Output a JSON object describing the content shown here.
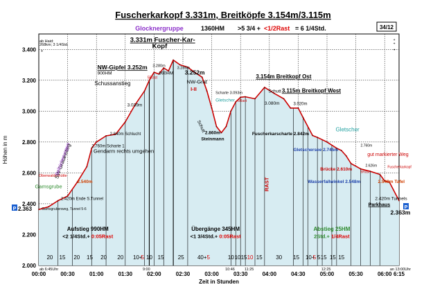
{
  "chart_data": {
    "type": "line",
    "title": "Fuscherkarkopf 3.331m, Breitköpfe 3.154m/3.115m",
    "subtitle": {
      "group": "Glocknergruppe",
      "hm": "1360HM",
      "time_a": ">5 3/4 +",
      "rast": "<1/2Rast",
      "time_b": "= 6 1/4Std."
    },
    "page_badge": "34/12",
    "xlabel": "Zeit in Stunden",
    "ylabel": "Höhen in m",
    "ylim": [
      2000,
      3500
    ],
    "xlim": [
      0,
      375
    ],
    "y_ticks": [
      "2.000",
      "2.200",
      "2.400",
      "2.600",
      "2.800",
      "3.000",
      "3.200",
      "3.400"
    ],
    "x_ticks": [
      "00:00",
      "00:30",
      "01:00",
      "01:30",
      "02:00",
      "02:30",
      "03:00",
      "03:30",
      "04:00",
      "04:30",
      "05:00",
      "05:30",
      "06:00",
      "6:15"
    ],
    "series": [
      {
        "name": "Route",
        "x": [
          0,
          10,
          20,
          30,
          40,
          50,
          55,
          60,
          70,
          80,
          90,
          100,
          110,
          115,
          120,
          125,
          130,
          135,
          140,
          147,
          155,
          162,
          170,
          175,
          180,
          185,
          190,
          195,
          200,
          205,
          210,
          215,
          225,
          235,
          245,
          255,
          262,
          270,
          275,
          285,
          290,
          300,
          310,
          315,
          320,
          325,
          335,
          345,
          355,
          360,
          365,
          375
        ],
        "y": [
          2363,
          2380,
          2420,
          2450,
          2540,
          2640,
          2760,
          2800,
          2840,
          2850,
          2930,
          3039,
          3130,
          3200,
          3252,
          3240,
          3280,
          3260,
          3331,
          3300,
          3285,
          3252,
          3220,
          3130,
          3020,
          2900,
          2860,
          2900,
          3000,
          3060,
          3090,
          3093,
          3080,
          3154,
          3115,
          3080,
          3020,
          3020,
          2960,
          2842,
          2830,
          2800,
          2760,
          2745,
          2710,
          2660,
          2626,
          2610,
          2590,
          2548,
          2540,
          2420
        ]
      }
    ],
    "footer": {
      "start_note": "ab 6:45Uhr",
      "end_note": "an 13:00Uhr",
      "marks": [
        {
          "label": "9:00",
          "x": 112
        },
        {
          "label": "10:46",
          "x": 199
        },
        {
          "label": "11:25",
          "x": 219
        },
        {
          "label": "12:25",
          "x": 299
        }
      ]
    },
    "segments": [
      {
        "t": "20",
        "x": 11.5,
        "rast": false
      },
      {
        "t": "15",
        "x": 24.5,
        "rast": false
      },
      {
        "t": "20",
        "x": 39.5,
        "rast": false
      },
      {
        "t": "15",
        "x": 53,
        "rast": false
      },
      {
        "t": "20",
        "x": 67.5,
        "rast": false
      },
      {
        "t": "20",
        "x": 85,
        "rast": false
      },
      {
        "t": "10+",
        "x": 103,
        "rast": false
      },
      {
        "t": "5",
        "x": 108,
        "rast": true
      },
      {
        "t": "10",
        "x": 115,
        "rast": false
      },
      {
        "t": "15",
        "x": 127,
        "rast": false
      },
      {
        "t": "25",
        "x": 148,
        "rast": false
      },
      {
        "t": "40+",
        "x": 170,
        "rast": false
      },
      {
        "t": "5",
        "x": 176.5,
        "rast": true
      },
      {
        "t": "10",
        "x": 200,
        "rast": false
      },
      {
        "t": "10",
        "x": 207,
        "rast": false
      },
      {
        "t": "15",
        "x": 213.5,
        "rast": false
      },
      {
        "t": "10",
        "x": 220,
        "rast": true
      },
      {
        "t": "15",
        "x": 229.5,
        "rast": false
      },
      {
        "t": "30",
        "x": 250,
        "rast": false
      },
      {
        "t": "15",
        "x": 268,
        "rast": false
      },
      {
        "t": "10+",
        "x": 282.5,
        "rast": false
      },
      {
        "t": "5",
        "x": 287,
        "rast": true
      },
      {
        "t": "5",
        "x": 291.5,
        "rast": false
      },
      {
        "t": "15",
        "x": 296.5,
        "rast": false
      },
      {
        "t": "15",
        "x": 306,
        "rast": false
      },
      {
        "t": "15",
        "x": 315,
        "rast": false
      }
    ],
    "sections": [
      {
        "name": "Aufstieg 990HM",
        "time": "<2 1/4Std.+",
        "rast": "0:05Rast",
        "x": 51
      },
      {
        "name": "Übergänge 345HM",
        "time": "<1 3/4Std.+",
        "rast": "0:05Rast",
        "x": 184
      },
      {
        "name": "Abstieg 25HM",
        "time": "2Std.+",
        "rast": "1/4Rast",
        "x": 305
      }
    ],
    "annotations": [
      {
        "text": "ab Haid:",
        "x": 0.7,
        "y": 3445,
        "size": 5.5,
        "color": "#000000"
      },
      {
        "text": "268km; 3 1/4Std.",
        "x": 0.7,
        "y": 3424,
        "size": 5.5,
        "color": "#000000"
      },
      {
        "text": "3.331m Fuscher-Kar-",
        "x": 95,
        "y": 3448,
        "size": 9.5,
        "color": "#000000",
        "bold": true,
        "underline": true
      },
      {
        "text": "Kopf",
        "x": 118,
        "y": 3408,
        "size": 9.5,
        "color": "#000000",
        "bold": true
      },
      {
        "text": "NW-Gipfel 3.252m",
        "x": 61,
        "y": 3270,
        "size": 8.5,
        "color": "#000000",
        "bold": true,
        "underline": true
      },
      {
        "text": "900HM",
        "x": 61,
        "y": 3237,
        "size": 6.5,
        "color": "#000000"
      },
      {
        "text": "3.280m",
        "x": 118.5,
        "y": 3287,
        "size": 5.5,
        "color": "#000000"
      },
      {
        "text": "990HM",
        "x": 125,
        "y": 3237,
        "size": 6.5,
        "color": "#000000"
      },
      {
        "text": "3.285m",
        "x": 144,
        "y": 3273,
        "size": 5.5,
        "color": "#000000"
      },
      {
        "text": "3.252m",
        "x": 152,
        "y": 3238,
        "size": 8.5,
        "color": "#000000",
        "bold": true
      },
      {
        "text": "5Rast",
        "x": 113,
        "y": 3210,
        "size": 5.5,
        "color": "#cc0000"
      },
      {
        "text": "Schussanstieg",
        "x": 58,
        "y": 3168,
        "size": 8,
        "color": "#000000"
      },
      {
        "text": "NW-Grat",
        "x": 154,
        "y": 3178,
        "size": 7.5,
        "color": "#000000"
      },
      {
        "text": "I-II",
        "x": 158,
        "y": 3131,
        "size": 7.5,
        "color": "#cc0000",
        "bold": true
      },
      {
        "text": "3.039m",
        "x": 92,
        "y": 3030,
        "size": 6.5,
        "color": "#000000"
      },
      {
        "text": "2.840m  Schlucht",
        "x": 74,
        "y": 2845,
        "size": 6,
        "color": "#000000"
      },
      {
        "text": "2.760m Scharte 1",
        "x": 55,
        "y": 2765,
        "size": 6,
        "color": "#000000"
      },
      {
        "text": "Gendarm rechts umgehen",
        "x": 57,
        "y": 2730,
        "size": 7.5,
        "color": "#000000"
      },
      {
        "text": "2.420m Ende S.Tunnel",
        "x": 23,
        "y": 2425,
        "size": 6,
        "color": "#000000"
      },
      {
        "text": "Gamsgrubenweg, Tunnel 5-6",
        "x": 3,
        "y": 2359,
        "size": 5,
        "color": "#000000"
      },
      {
        "text": "Gamsgrube",
        "x": -4,
        "y": 2500,
        "size": 7.5,
        "color": "#2e8b2e"
      },
      {
        "text": "Oberwalderhütte",
        "x": 0,
        "y": 2575,
        "size": 5.5,
        "color": "#cc0000"
      },
      {
        "text": "2.540m",
        "x": 40,
        "y": 2535,
        "size": 6.5,
        "color": "#d04000",
        "bold": true
      },
      {
        "text": "Schutt",
        "x": 165,
        "y": 2935,
        "size": 6.5,
        "color": "#000000",
        "rotate": 65
      },
      {
        "text": "2.860m",
        "x": 173,
        "y": 2850,
        "size": 6.5,
        "color": "#000000",
        "bold": true
      },
      {
        "text": "Steinmann",
        "x": 169,
        "y": 2810,
        "size": 6.5,
        "color": "#000000",
        "bold": true
      },
      {
        "text": "Scharte 3.093m",
        "x": 184,
        "y": 3111,
        "size": 5.5,
        "color": "#000000"
      },
      {
        "text": "Gletscher",
        "x": 184,
        "y": 3063,
        "size": 6.5,
        "color": "#20a0a0"
      },
      {
        "text": "5Rast",
        "x": 207,
        "y": 3060,
        "size": 5,
        "color": "#cc0000"
      },
      {
        "text": "3.154m Breitkopf Ost",
        "x": 226,
        "y": 3213,
        "size": 8,
        "color": "#000000",
        "bold": true,
        "underline": true
      },
      {
        "text": "Schutt",
        "x": 239,
        "y": 3121,
        "size": 6.5,
        "color": "#000000"
      },
      {
        "text": "3.115m Breitkopf West",
        "x": 253,
        "y": 3121,
        "size": 8,
        "color": "#000000",
        "bold": true,
        "underline": true
      },
      {
        "text": "3.080m",
        "x": 235,
        "y": 3043,
        "size": 6.5,
        "color": "#000000"
      },
      {
        "text": "3.020m",
        "x": 265,
        "y": 3039,
        "size": 6,
        "color": "#000000"
      },
      {
        "text": "Fuscherkarscharte 2.842m",
        "x": 222,
        "y": 2844,
        "size": 6.5,
        "color": "#000000",
        "bold": true
      },
      {
        "text": "Gletscher",
        "x": 309,
        "y": 2870,
        "size": 8,
        "color": "#20a0a0"
      },
      {
        "text": "2.760m",
        "x": 335,
        "y": 2770,
        "size": 5,
        "color": "#000000"
      },
      {
        "text": "Gletschersee 2.745m",
        "x": 265,
        "y": 2740,
        "size": 6.5,
        "color": "#1a3ea8",
        "bold": true
      },
      {
        "text": "gut markierter Weg",
        "x": 342,
        "y": 2710,
        "size": 7,
        "color": "#cc0000"
      },
      {
        "text": "Brücke 2.610m",
        "x": 293,
        "y": 2615,
        "size": 6.5,
        "color": "#cc0000",
        "bold": true
      },
      {
        "text": "Fuscherkarkopf",
        "x": 363,
        "y": 2630,
        "size": 5,
        "color": "#cc0000"
      },
      {
        "text": "2.626m",
        "x": 340,
        "y": 2640,
        "size": 5,
        "color": "#000000"
      },
      {
        "text": "5Rast",
        "x": 335,
        "y": 2600,
        "size": 5,
        "color": "#cc0000"
      },
      {
        "text": "Wasserfallwinkel 2.548m",
        "x": 280,
        "y": 2535,
        "size": 6.5,
        "color": "#1a3ea8",
        "bold": true
      },
      {
        "text": "2.540m Tafel",
        "x": 353,
        "y": 2535,
        "size": 6.5,
        "color": "#d04000",
        "bold": true
      },
      {
        "text": "2.420m Tunnels",
        "x": 350,
        "y": 2425,
        "size": 6.5,
        "color": "#000000"
      },
      {
        "text": "Parkhaus",
        "x": 343,
        "y": 2385,
        "size": 7,
        "color": "#000000",
        "bold": true,
        "underline": true
      },
      {
        "text": "2.363m",
        "x": 366,
        "y": 2330,
        "size": 8.5,
        "color": "#000000",
        "bold": true
      },
      {
        "text": "RAST",
        "x": 239,
        "y": 2480,
        "size": 7.5,
        "color": "#cc0000",
        "bold": true,
        "rotate": -90
      },
      {
        "text": "SW-Gratanstieg",
        "x": 20,
        "y": 2560,
        "size": 7.5,
        "color": "#000000",
        "rotate": -70
      },
      {
        "text": "Seilsicherungen",
        "x": 20,
        "y": 2580,
        "size": 7,
        "color": "#9933cc",
        "rotate": -70
      },
      {
        "text": "+",
        "x": 2,
        "y": 3380,
        "size": 6,
        "color": "#000000"
      },
      {
        "text": "+",
        "x": 369,
        "y": 3455,
        "size": 5,
        "color": "#000000"
      },
      {
        "text": "+",
        "x": 369,
        "y": 3430,
        "size": 5,
        "color": "#000000"
      },
      {
        "text": "+",
        "x": 369,
        "y": 3390,
        "size": 5,
        "color": "#000000"
      }
    ],
    "parking_label": "P",
    "start_value": "2.363"
  },
  "colors": {
    "fill": "#d7ecf2",
    "line": "#cc0000",
    "grid": "#000000",
    "purple": "#8b2fc9",
    "red": "#dd0000",
    "green": "#2e8b2e",
    "blue": "#1a3ea8",
    "teal": "#20a0a0"
  }
}
